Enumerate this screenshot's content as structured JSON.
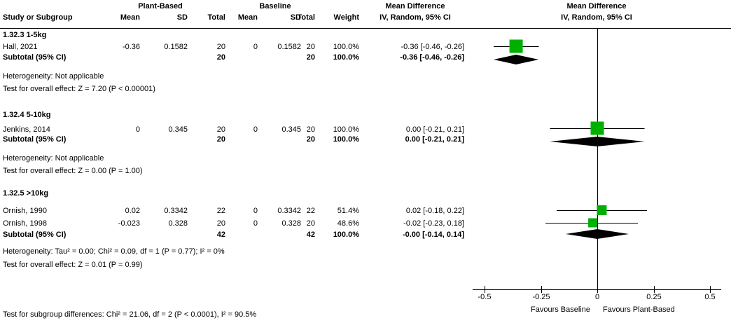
{
  "header": {
    "group_plant": "Plant-Based",
    "group_baseline": "Baseline",
    "md_title": "Mean Difference",
    "iv_subtitle": "IV, Random, 95% CI",
    "col_study": "Study or Subgroup",
    "col_mean": "Mean",
    "col_sd": "SD",
    "col_total": "Total",
    "col_weight": "Weight"
  },
  "groups": [
    {
      "title": "1.32.3 1-5kg",
      "studies": [
        {
          "label": "Hall, 2021",
          "mean1": "-0.36",
          "sd1": "0.1582",
          "total1": "20",
          "mean2": "0",
          "sd2": "0.1582",
          "total2": "20",
          "weight": "100.0%",
          "md": "-0.36 [-0.46, -0.26]"
        }
      ],
      "subtotal": {
        "label": "Subtotal (95% CI)",
        "total1": "20",
        "total2": "20",
        "weight": "100.0%",
        "md": "-0.36 [-0.46, -0.26]"
      },
      "heterogeneity": "Heterogeneity: Not applicable",
      "overall_effect": "Test for overall effect: Z = 7.20 (P < 0.00001)"
    },
    {
      "title": "1.32.4 5-10kg",
      "studies": [
        {
          "label": "Jenkins, 2014",
          "mean1": "0",
          "sd1": "0.345",
          "total1": "20",
          "mean2": "0",
          "sd2": "0.345",
          "total2": "20",
          "weight": "100.0%",
          "md": "0.00 [-0.21, 0.21]"
        }
      ],
      "subtotal": {
        "label": "Subtotal (95% CI)",
        "total1": "20",
        "total2": "20",
        "weight": "100.0%",
        "md": "0.00 [-0.21, 0.21]"
      },
      "heterogeneity": "Heterogeneity: Not applicable",
      "overall_effect": "Test for overall effect: Z = 0.00 (P = 1.00)"
    },
    {
      "title": "1.32.5 >10kg",
      "studies": [
        {
          "label": "Ornish, 1990",
          "mean1": "0.02",
          "sd1": "0.3342",
          "total1": "22",
          "mean2": "0",
          "sd2": "0.3342",
          "total2": "22",
          "weight": "51.4%",
          "md": "0.02 [-0.18, 0.22]"
        },
        {
          "label": "Ornish, 1998",
          "mean1": "-0.023",
          "sd1": "0.328",
          "total1": "20",
          "mean2": "0",
          "sd2": "0.328",
          "total2": "20",
          "weight": "48.6%",
          "md": "-0.02 [-0.23, 0.18]"
        }
      ],
      "subtotal": {
        "label": "Subtotal (95% CI)",
        "total1": "42",
        "total2": "42",
        "weight": "100.0%",
        "md": "-0.00 [-0.14, 0.14]"
      },
      "heterogeneity": "Heterogeneity: Tau² = 0.00; Chi² = 0.09, df = 1 (P = 0.77); I² = 0%",
      "overall_effect": "Test for overall effect: Z = 0.01 (P = 0.99)"
    }
  ],
  "footer": "Test for subgroup differences: Chi² = 21.06, df = 2 (P < 0.0001), I² = 90.5%",
  "chart_data": {
    "type": "scatter",
    "subtype": "forest_plot",
    "title": "Mean Difference",
    "effect_model": "IV, Random, 95% CI",
    "x_axis": {
      "ticks": [
        -0.5,
        -0.25,
        0,
        0.25,
        0.5
      ],
      "tick_labels": [
        "-0.5",
        "-0.25",
        "0",
        "0.25",
        "0.5"
      ],
      "xlim": [
        -0.55,
        0.55
      ],
      "label_left": "Favours Baseline",
      "label_right": "Favours Plant-Based"
    },
    "groups": [
      {
        "name": "1.32.3 1-5kg",
        "studies": [
          {
            "name": "Hall, 2021",
            "estimate": -0.36,
            "ci_low": -0.46,
            "ci_high": -0.26,
            "weight_pct": 100.0
          }
        ],
        "subtotal": {
          "estimate": -0.36,
          "ci_low": -0.46,
          "ci_high": -0.26
        }
      },
      {
        "name": "1.32.4 5-10kg",
        "studies": [
          {
            "name": "Jenkins, 2014",
            "estimate": 0.0,
            "ci_low": -0.21,
            "ci_high": 0.21,
            "weight_pct": 100.0
          }
        ],
        "subtotal": {
          "estimate": 0.0,
          "ci_low": -0.21,
          "ci_high": 0.21
        }
      },
      {
        "name": "1.32.5 >10kg",
        "studies": [
          {
            "name": "Ornish, 1990",
            "estimate": 0.02,
            "ci_low": -0.18,
            "ci_high": 0.22,
            "weight_pct": 51.4
          },
          {
            "name": "Ornish, 1998",
            "estimate": -0.02,
            "ci_low": -0.23,
            "ci_high": 0.18,
            "weight_pct": 48.6
          }
        ],
        "subtotal": {
          "estimate": -0.0,
          "ci_low": -0.14,
          "ci_high": 0.14
        }
      }
    ],
    "colors": {
      "study_marker": "#00B000",
      "diamond": "#000000",
      "line": "#000000"
    }
  }
}
